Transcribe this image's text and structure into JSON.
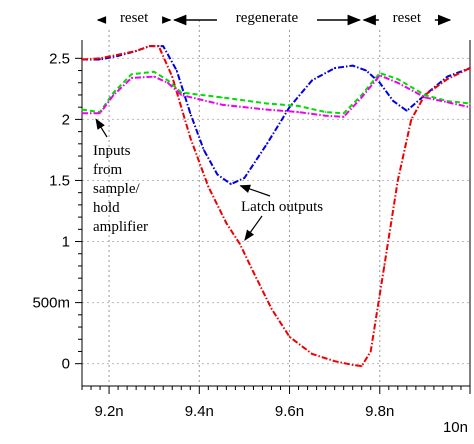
{
  "chart_data": {
    "type": "line",
    "title": "",
    "xlabel": "",
    "ylabel": "",
    "xlim": [
      9.14,
      10.0
    ],
    "ylim": [
      -0.15,
      2.65
    ],
    "grid": true,
    "x_ticks": [
      {
        "value": 9.2,
        "label": "9.2n"
      },
      {
        "value": 9.4,
        "label": "9.4n"
      },
      {
        "value": 9.6,
        "label": "9.6n"
      },
      {
        "value": 9.8,
        "label": "9.8n"
      },
      {
        "value": 10.0,
        "label": "10n"
      }
    ],
    "y_ticks": [
      {
        "value": 2.5,
        "label": "2.5"
      },
      {
        "value": 2.0,
        "label": "2"
      },
      {
        "value": 1.5,
        "label": "1.5"
      },
      {
        "value": 1.0,
        "label": "1"
      },
      {
        "value": 0.5,
        "label": "500m"
      },
      {
        "value": 0.0,
        "label": "0"
      }
    ],
    "phases": [
      {
        "label": "reset",
        "x_start": 9.14,
        "x_end": 9.34
      },
      {
        "label": "regenerate",
        "x_start": 9.34,
        "x_end": 9.76
      },
      {
        "label": "reset",
        "x_start": 9.76,
        "x_end": 9.96
      }
    ],
    "series": [
      {
        "color": "#0000e0",
        "dash": "dashdot",
        "points": [
          [
            9.14,
            2.49
          ],
          [
            9.18,
            2.49
          ],
          [
            9.22,
            2.52
          ],
          [
            9.26,
            2.56
          ],
          [
            9.29,
            2.6
          ],
          [
            9.32,
            2.6
          ],
          [
            9.35,
            2.4
          ],
          [
            9.38,
            2.05
          ],
          [
            9.41,
            1.75
          ],
          [
            9.44,
            1.55
          ],
          [
            9.47,
            1.47
          ],
          [
            9.5,
            1.52
          ],
          [
            9.55,
            1.8
          ],
          [
            9.6,
            2.1
          ],
          [
            9.65,
            2.32
          ],
          [
            9.7,
            2.42
          ],
          [
            9.74,
            2.44
          ],
          [
            9.77,
            2.4
          ],
          [
            9.8,
            2.3
          ],
          [
            9.83,
            2.15
          ],
          [
            9.86,
            2.07
          ],
          [
            9.9,
            2.2
          ],
          [
            9.95,
            2.35
          ],
          [
            10.0,
            2.42
          ]
        ]
      },
      {
        "color": "#ee0000",
        "dash": "dashdot",
        "points": [
          [
            9.14,
            2.49
          ],
          [
            9.18,
            2.5
          ],
          [
            9.22,
            2.53
          ],
          [
            9.26,
            2.56
          ],
          [
            9.29,
            2.6
          ],
          [
            9.31,
            2.6
          ],
          [
            9.34,
            2.35
          ],
          [
            9.38,
            1.85
          ],
          [
            9.42,
            1.45
          ],
          [
            9.46,
            1.15
          ],
          [
            9.49,
            0.98
          ],
          [
            9.52,
            0.75
          ],
          [
            9.56,
            0.45
          ],
          [
            9.6,
            0.22
          ],
          [
            9.65,
            0.08
          ],
          [
            9.7,
            0.02
          ],
          [
            9.74,
            -0.01
          ],
          [
            9.76,
            -0.02
          ],
          [
            9.78,
            0.1
          ],
          [
            9.81,
            0.8
          ],
          [
            9.84,
            1.5
          ],
          [
            9.87,
            2.0
          ],
          [
            9.9,
            2.2
          ],
          [
            9.95,
            2.33
          ],
          [
            10.0,
            2.42
          ]
        ]
      },
      {
        "color": "#00dd00",
        "dash": "dashed",
        "points": [
          [
            9.14,
            2.08
          ],
          [
            9.18,
            2.06
          ],
          [
            9.21,
            2.22
          ],
          [
            9.25,
            2.37
          ],
          [
            9.3,
            2.39
          ],
          [
            9.33,
            2.32
          ],
          [
            9.36,
            2.22
          ],
          [
            9.45,
            2.18
          ],
          [
            9.55,
            2.13
          ],
          [
            9.62,
            2.11
          ],
          [
            9.68,
            2.06
          ],
          [
            9.72,
            2.05
          ],
          [
            9.76,
            2.2
          ],
          [
            9.8,
            2.38
          ],
          [
            9.84,
            2.33
          ],
          [
            9.9,
            2.2
          ],
          [
            9.95,
            2.15
          ],
          [
            10.0,
            2.13
          ]
        ]
      },
      {
        "color": "#ee00ee",
        "dash": "dashdot",
        "points": [
          [
            9.14,
            2.05
          ],
          [
            9.18,
            2.05
          ],
          [
            9.21,
            2.2
          ],
          [
            9.25,
            2.34
          ],
          [
            9.3,
            2.35
          ],
          [
            9.33,
            2.3
          ],
          [
            9.36,
            2.2
          ],
          [
            9.45,
            2.12
          ],
          [
            9.55,
            2.08
          ],
          [
            9.62,
            2.06
          ],
          [
            9.68,
            2.03
          ],
          [
            9.72,
            2.02
          ],
          [
            9.76,
            2.18
          ],
          [
            9.8,
            2.36
          ],
          [
            9.84,
            2.3
          ],
          [
            9.9,
            2.18
          ],
          [
            9.95,
            2.14
          ],
          [
            10.0,
            2.1
          ]
        ]
      }
    ],
    "annotations": [
      {
        "label": "Inputs\nfrom\nsample/\nhold\namplifier",
        "arrow_to": [
          9.18,
          2.05
        ]
      },
      {
        "label": "Latch outputs",
        "arrow_to": [
          [
            9.48,
            1.49
          ],
          [
            9.49,
            0.98
          ]
        ]
      }
    ]
  }
}
